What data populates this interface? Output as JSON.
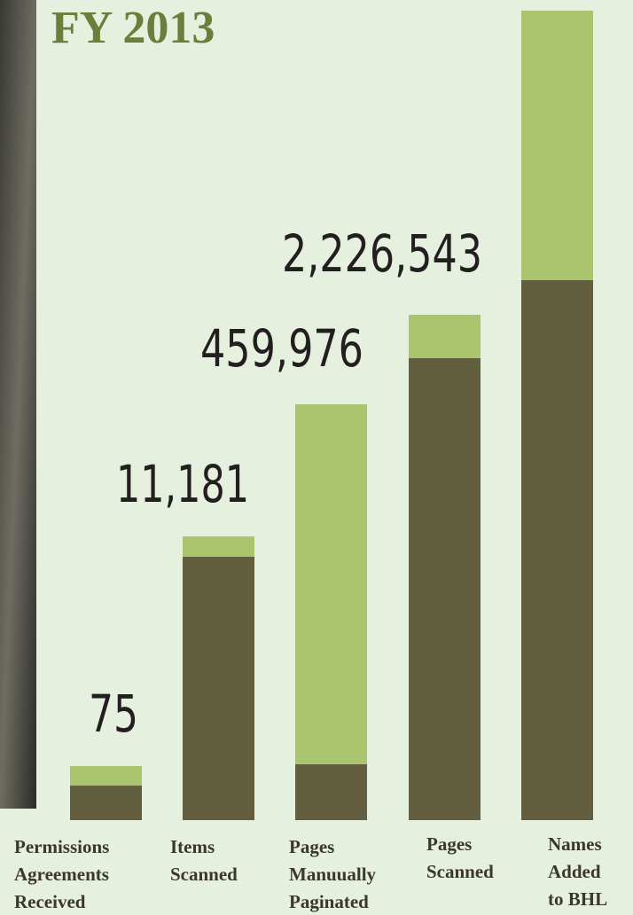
{
  "title": "FY 2013",
  "items": [
    {
      "figure": "75",
      "label": [
        "Permissions",
        "Agreements",
        "Received"
      ]
    },
    {
      "figure": "11,181",
      "label": [
        "Items",
        "Scanned"
      ]
    },
    {
      "figure": "459,976",
      "label": [
        "Pages",
        "Manuually",
        "Paginated"
      ]
    },
    {
      "figure": "2,226,543",
      "label": [
        "Pages",
        "Scanned"
      ]
    },
    {
      "label": [
        "Names",
        "Added",
        "to BHL"
      ]
    }
  ]
}
